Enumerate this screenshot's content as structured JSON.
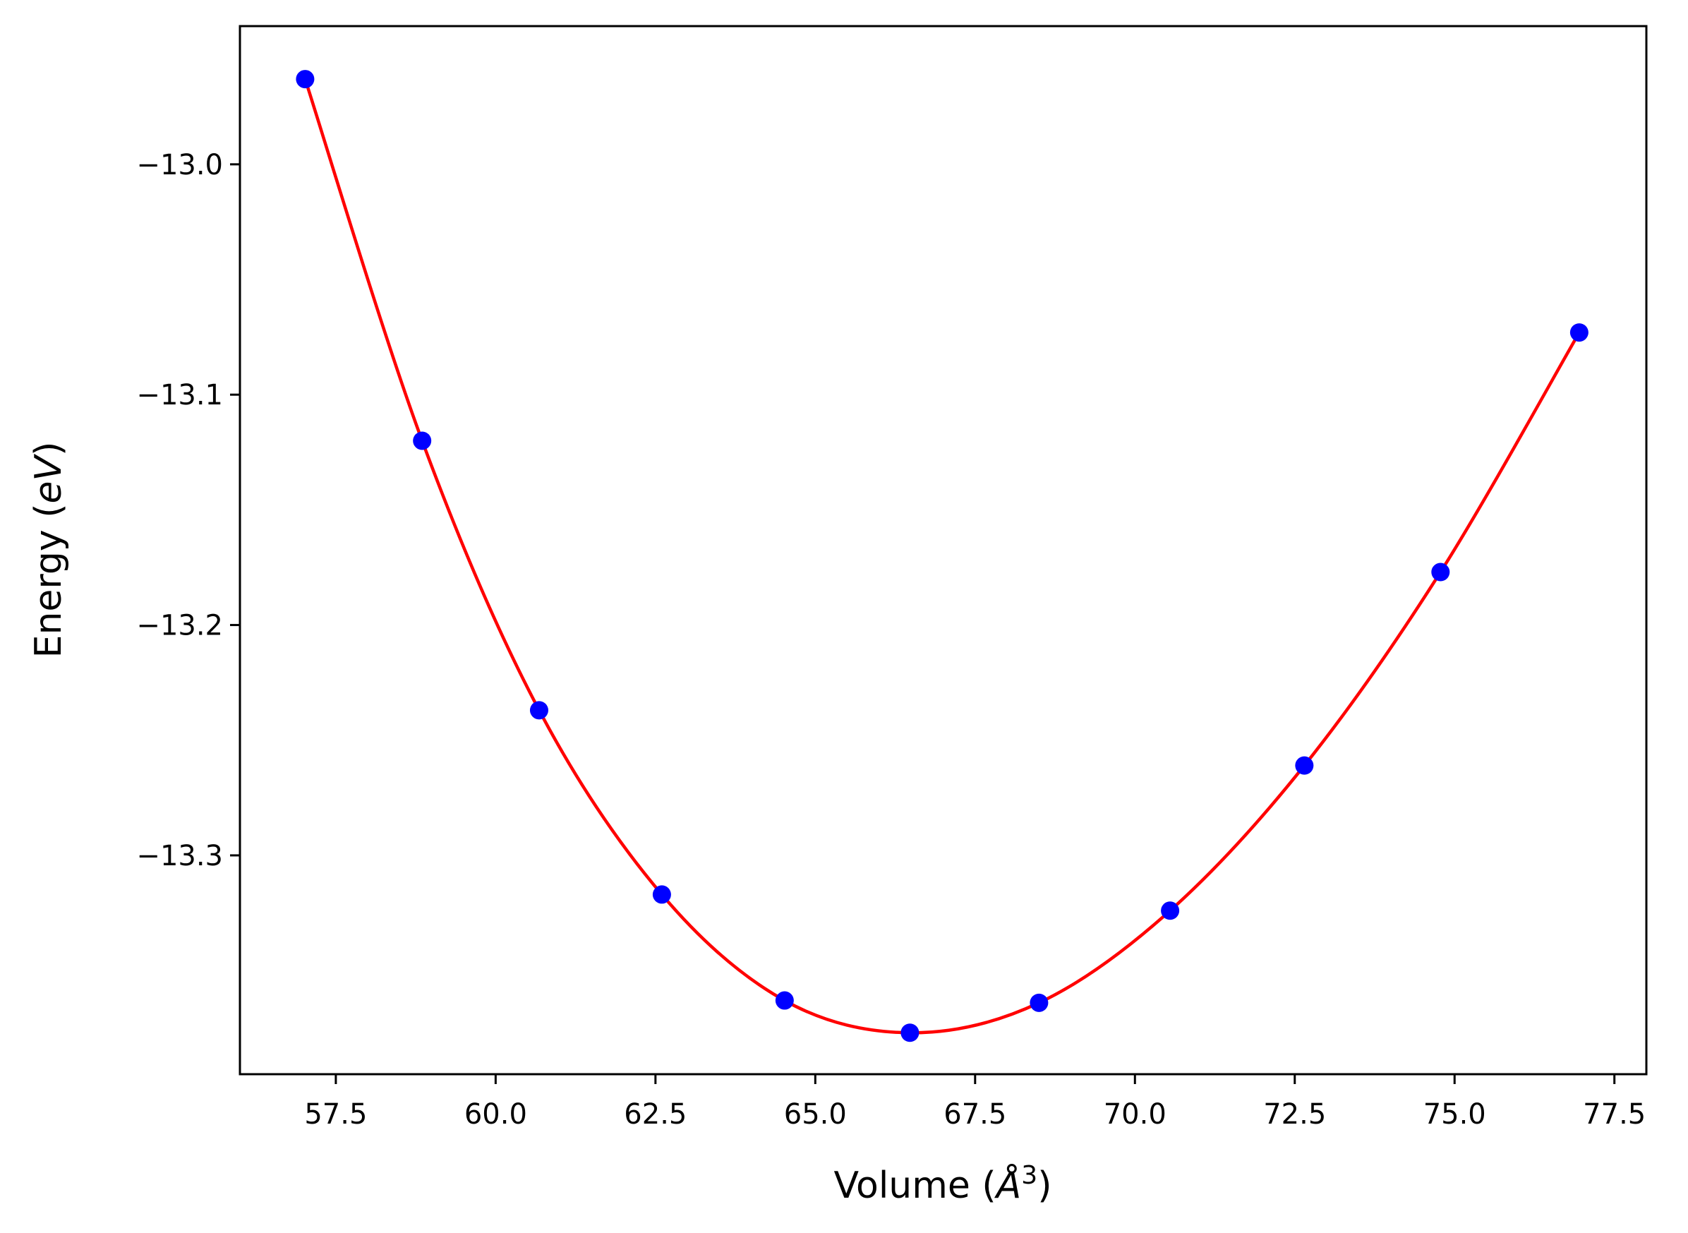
{
  "chart_data": {
    "type": "line",
    "title": "",
    "xlabel": "Volume (Å³)",
    "xlabel_main": "Volume (",
    "xlabel_unit": "Å",
    "xlabel_exp": "3",
    "xlabel_close": ")",
    "ylabel": "Energy (eV)",
    "ylabel_main": "Energy (",
    "ylabel_unit": "eV",
    "ylabel_close": ")",
    "xlim": [
      56.0,
      78.0
    ],
    "ylim": [
      -13.395,
      -12.94
    ],
    "xticks": [
      57.5,
      60.0,
      62.5,
      65.0,
      67.5,
      70.0,
      72.5,
      75.0,
      77.5
    ],
    "xtick_labels": [
      "57.5",
      "60.0",
      "62.5",
      "65.0",
      "67.5",
      "70.0",
      "72.5",
      "75.0",
      "77.5"
    ],
    "yticks": [
      -13.0,
      -13.1,
      -13.2,
      -13.3
    ],
    "ytick_labels": [
      "−13.0",
      "−13.1",
      "−13.2",
      "−13.3"
    ],
    "grid": false,
    "series": [
      {
        "kind": "scatter",
        "color": "#0000ff",
        "x": [
          57.02,
          58.85,
          60.68,
          62.6,
          64.52,
          66.48,
          68.5,
          70.55,
          72.65,
          74.78,
          76.95
        ],
        "y": [
          -12.963,
          -13.12,
          -13.237,
          -13.317,
          -13.363,
          -13.377,
          -13.364,
          -13.324,
          -13.261,
          -13.177,
          -13.073
        ]
      },
      {
        "kind": "fit-curve",
        "color": "#ff0000",
        "x": [
          57.02,
          58.85,
          60.68,
          62.6,
          64.52,
          66.48,
          68.5,
          70.55,
          72.65,
          74.78,
          76.95
        ],
        "y": [
          -12.963,
          -13.12,
          -13.237,
          -13.317,
          -13.363,
          -13.377,
          -13.364,
          -13.324,
          -13.261,
          -13.177,
          -13.073
        ]
      }
    ]
  }
}
